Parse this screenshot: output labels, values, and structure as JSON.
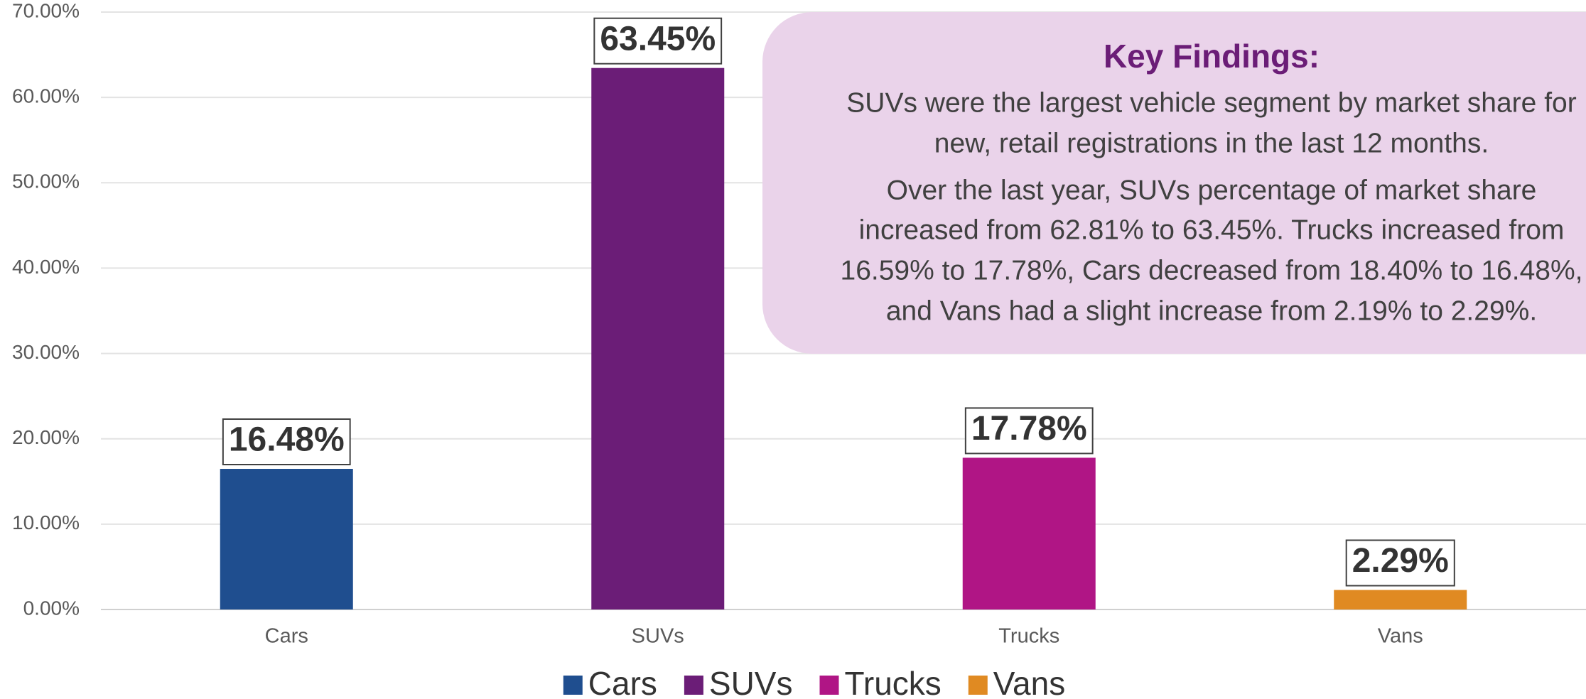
{
  "chart_data": {
    "type": "bar",
    "categories": [
      "Cars",
      "SUVs",
      "Trucks",
      "Vans"
    ],
    "values": [
      16.48,
      63.45,
      17.78,
      2.29
    ],
    "value_labels": [
      "16.48%",
      "63.45%",
      "17.78%",
      "2.29%"
    ],
    "colors": [
      "#1f4e8f",
      "#6b1d77",
      "#b01585",
      "#e08a22"
    ],
    "ylim": [
      0,
      70
    ],
    "yticks": [
      {
        "value": 0,
        "label": "0.00%"
      },
      {
        "value": 10,
        "label": "10.00%"
      },
      {
        "value": 20,
        "label": "20.00%"
      },
      {
        "value": 30,
        "label": "30.00%"
      },
      {
        "value": 40,
        "label": "40.00%"
      },
      {
        "value": 50,
        "label": "50.00%"
      },
      {
        "value": 60,
        "label": "60.00%"
      },
      {
        "value": 70,
        "label": "70.00%"
      }
    ],
    "grid": true,
    "legend": "bottom",
    "annotation": {
      "title": "Key Findings:",
      "lines": [
        "SUVs were the largest vehicle segment by market share for",
        "new, retail registrations in the last 12 months.",
        "Over the last year, SUVs percentage of market share",
        "increased from 62.81% to 63.45%.  Trucks increased from",
        "16.59% to 17.78%, Cars decreased from 18.40% to 16.48%,",
        "and Vans had a slight increase from 2.19% to 2.29%."
      ]
    }
  }
}
